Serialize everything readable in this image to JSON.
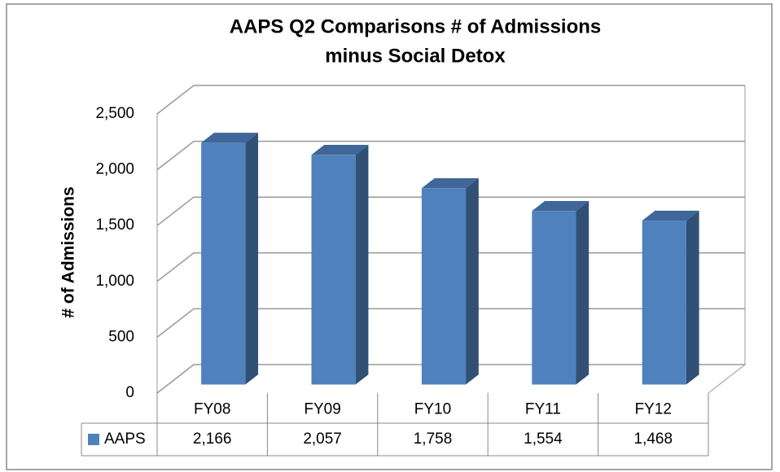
{
  "chart_data": {
    "type": "bar3d",
    "title": [
      "AAPS  Q2 Comparisons # of Admissions",
      "minus Social Detox"
    ],
    "ylabel": "# of Admissions",
    "categories": [
      "FY08",
      "FY09",
      "FY10",
      "FY11",
      "FY12"
    ],
    "series": [
      {
        "name": "AAPS",
        "color": "#4f81bd",
        "values": [
          2166,
          2057,
          1758,
          1554,
          1468
        ],
        "value_labels": [
          "2,166",
          "2,057",
          "1,758",
          "1,554",
          "1,468"
        ]
      }
    ],
    "ylim": [
      0,
      2500
    ],
    "yticks": [
      0,
      500,
      {
        "value": 1000,
        "label": "1,000"
      },
      {
        "value": 1500,
        "label": "1,500"
      },
      {
        "value": 2000,
        "label": "2,000"
      },
      {
        "value": 2500,
        "label": "2,500"
      }
    ],
    "grid": true,
    "data_table": true
  }
}
